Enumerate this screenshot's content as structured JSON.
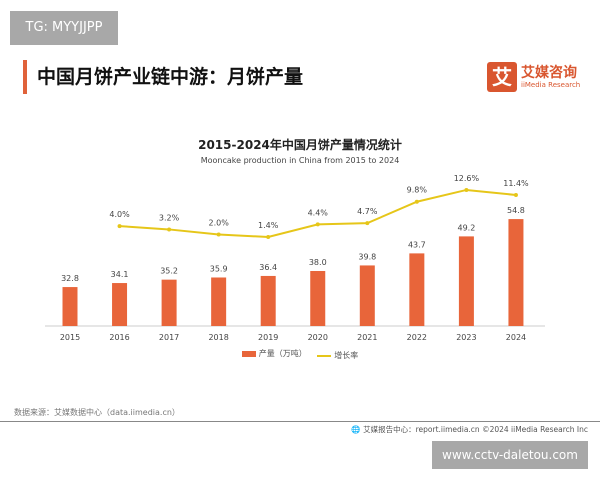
{
  "watermark_top": "TG: MYYJJPP",
  "page_title": "中国月饼产业链中游：月饼产量",
  "logo": {
    "cn": "艾媒咨询",
    "en": "iiMedia Research",
    "mark": "艾"
  },
  "chart_data": {
    "type": "bar+line",
    "title": "2015-2024年中国月饼产量情况统计",
    "subtitle": "Mooncake production  in China from 2015 to 2024",
    "categories": [
      "2015",
      "2016",
      "2017",
      "2018",
      "2019",
      "2020",
      "2021",
      "2022",
      "2023",
      "2024"
    ],
    "series": [
      {
        "name": "产量（万吨）",
        "type": "bar",
        "color": "#e8653a",
        "values": [
          32.8,
          34.1,
          35.2,
          35.9,
          36.4,
          38.0,
          39.8,
          43.7,
          49.2,
          54.8
        ],
        "labels": [
          "32.8",
          "34.1",
          "35.2",
          "35.9",
          "36.4",
          "38.0",
          "39.8",
          "43.7",
          "49.2",
          "54.8"
        ]
      },
      {
        "name": "增长率",
        "type": "line",
        "color": "#e6c619",
        "values": [
          null,
          4.0,
          3.2,
          2.0,
          1.4,
          4.4,
          4.7,
          9.8,
          12.6,
          11.4
        ],
        "labels": [
          "",
          "4.0%",
          "3.2%",
          "2.0%",
          "1.4%",
          "4.4%",
          "4.7%",
          "9.8%",
          "12.6%",
          "11.4%"
        ]
      }
    ],
    "legend": "bottom",
    "grid": false
  },
  "source": "数据来源：艾媒数据中心（data.iimedia.cn）",
  "footer": "艾媒报告中心：report.iimedia.cn    ©2024  iiMedia Research  Inc",
  "watermark_bottom": "www.cctv-daletou.com"
}
